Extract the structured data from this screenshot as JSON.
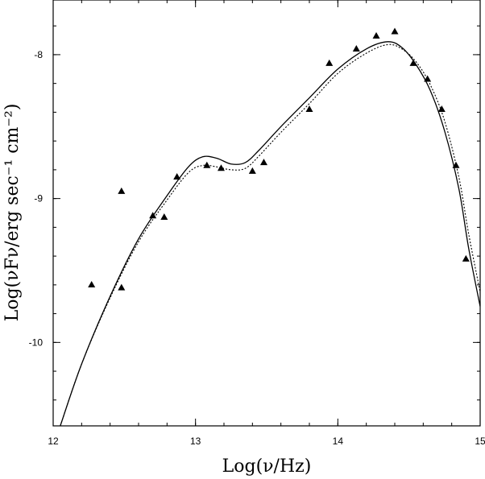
{
  "chart_data": {
    "type": "scatter",
    "title": "",
    "xlabel": "Log(ν/Hz)",
    "ylabel": "Log(νFν/erg sec⁻¹ cm⁻²)",
    "xlim": [
      12,
      15
    ],
    "ylim": [
      -10.58,
      -7.62
    ],
    "x_ticks": [
      12,
      13,
      14,
      15
    ],
    "y_ticks": [
      -10,
      -9,
      -8
    ],
    "x_tick_labels": [
      "12",
      "13",
      "14",
      "15"
    ],
    "y_tick_labels": [
      "-10",
      "-9",
      "-8"
    ],
    "grid": false,
    "legend": "none",
    "series": [
      {
        "style": "markers-triangle",
        "points": [
          [
            12.27,
            -9.6
          ],
          [
            12.48,
            -8.95
          ],
          [
            12.48,
            -9.62
          ],
          [
            12.7,
            -9.12
          ],
          [
            12.78,
            -9.13
          ],
          [
            12.87,
            -8.85
          ],
          [
            13.08,
            -8.77
          ],
          [
            13.18,
            -8.79
          ],
          [
            13.4,
            -8.81
          ],
          [
            13.48,
            -8.75
          ],
          [
            13.8,
            -8.38
          ],
          [
            13.94,
            -8.06
          ],
          [
            14.13,
            -7.96
          ],
          [
            14.27,
            -7.87
          ],
          [
            14.4,
            -7.84
          ],
          [
            14.53,
            -8.06
          ],
          [
            14.63,
            -8.17
          ],
          [
            14.73,
            -8.38
          ],
          [
            14.83,
            -8.77
          ],
          [
            14.9,
            -9.42
          ]
        ]
      },
      {
        "style": "solid-line",
        "points": [
          [
            12.05,
            -10.58
          ],
          [
            12.2,
            -10.15
          ],
          [
            12.4,
            -9.68
          ],
          [
            12.6,
            -9.28
          ],
          [
            12.8,
            -8.98
          ],
          [
            12.95,
            -8.78
          ],
          [
            13.05,
            -8.71
          ],
          [
            13.15,
            -8.72
          ],
          [
            13.25,
            -8.76
          ],
          [
            13.35,
            -8.75
          ],
          [
            13.45,
            -8.66
          ],
          [
            13.6,
            -8.5
          ],
          [
            13.8,
            -8.3
          ],
          [
            14.0,
            -8.1
          ],
          [
            14.2,
            -7.96
          ],
          [
            14.35,
            -7.91
          ],
          [
            14.45,
            -7.95
          ],
          [
            14.55,
            -8.07
          ],
          [
            14.65,
            -8.25
          ],
          [
            14.75,
            -8.53
          ],
          [
            14.85,
            -8.93
          ],
          [
            14.92,
            -9.35
          ],
          [
            15.0,
            -9.75
          ]
        ]
      },
      {
        "style": "dotted-line",
        "points": [
          [
            12.05,
            -10.58
          ],
          [
            12.2,
            -10.15
          ],
          [
            12.4,
            -9.69
          ],
          [
            12.6,
            -9.3
          ],
          [
            12.8,
            -9.01
          ],
          [
            12.95,
            -8.82
          ],
          [
            13.05,
            -8.77
          ],
          [
            13.15,
            -8.78
          ],
          [
            13.25,
            -8.8
          ],
          [
            13.35,
            -8.79
          ],
          [
            13.45,
            -8.7
          ],
          [
            13.6,
            -8.54
          ],
          [
            13.8,
            -8.34
          ],
          [
            14.0,
            -8.13
          ],
          [
            14.2,
            -7.99
          ],
          [
            14.35,
            -7.93
          ],
          [
            14.45,
            -7.96
          ],
          [
            14.55,
            -8.05
          ],
          [
            14.65,
            -8.21
          ],
          [
            14.75,
            -8.46
          ],
          [
            14.85,
            -8.85
          ],
          [
            14.92,
            -9.25
          ],
          [
            15.0,
            -9.65
          ]
        ]
      }
    ]
  }
}
